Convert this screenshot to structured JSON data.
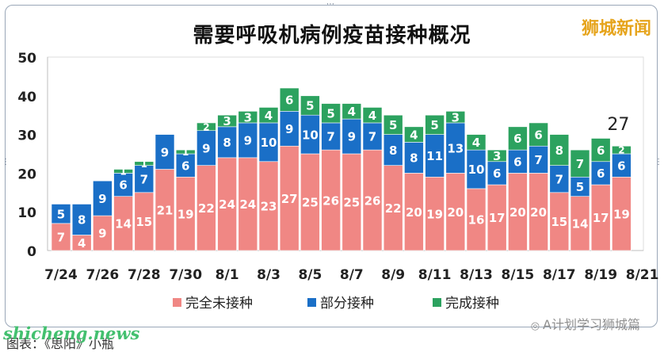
{
  "watermark": "狮城新闻",
  "footer": {
    "site": "shicheng.news",
    "caption": "图表：《思阳》小瓶",
    "account": "A计划学习狮城篇"
  },
  "colors": {
    "unvaccinated": "#f08784",
    "partial": "#1a6fc7",
    "full": "#2ca25f"
  },
  "chart_data": {
    "type": "bar",
    "stacked": true,
    "title": "需要呼吸机病例疫苗接种概况",
    "xlabel": "",
    "ylabel": "",
    "ylim": [
      0,
      50
    ],
    "yticks": [
      0,
      10,
      20,
      30,
      40,
      50
    ],
    "grid": false,
    "legend_position": "bottom",
    "categories": [
      "7/24",
      "7/25",
      "7/26",
      "7/27",
      "7/28",
      "7/29",
      "7/30",
      "7/31",
      "8/1",
      "8/2",
      "8/3",
      "8/4",
      "8/5",
      "8/6",
      "8/7",
      "8/8",
      "8/9",
      "8/10",
      "8/11",
      "8/12",
      "8/13",
      "8/14",
      "8/15",
      "8/16",
      "8/17",
      "8/18",
      "8/19",
      "8/20"
    ],
    "tick_labels": [
      "7/24",
      "7/26",
      "7/28",
      "7/30",
      "8/1",
      "8/3",
      "8/5",
      "8/7",
      "8/9",
      "8/11",
      "8/13",
      "8/15",
      "8/17",
      "8/19",
      "8/21"
    ],
    "series": [
      {
        "name": "完全未接种",
        "color": "#f08784",
        "values": [
          7,
          4,
          9,
          14,
          15,
          21,
          19,
          22,
          24,
          24,
          23,
          27,
          25,
          26,
          25,
          26,
          22,
          20,
          19,
          20,
          16,
          17,
          20,
          20,
          15,
          14,
          17,
          19
        ]
      },
      {
        "name": "部分接种",
        "color": "#1a6fc7",
        "values": [
          5,
          8,
          9,
          6,
          7,
          9,
          6,
          9,
          8,
          9,
          10,
          9,
          10,
          7,
          9,
          7,
          8,
          8,
          11,
          13,
          10,
          6,
          6,
          7,
          7,
          5,
          6,
          6
        ]
      },
      {
        "name": "完成接种",
        "color": "#2ca25f",
        "values": [
          0,
          0,
          0,
          1,
          1,
          0,
          1,
          2,
          3,
          3,
          4,
          6,
          5,
          5,
          4,
          4,
          5,
          4,
          5,
          3,
          4,
          3,
          6,
          6,
          8,
          7,
          6,
          2
        ]
      }
    ],
    "annotations": [
      {
        "category": "8/20",
        "text": "27"
      }
    ]
  }
}
